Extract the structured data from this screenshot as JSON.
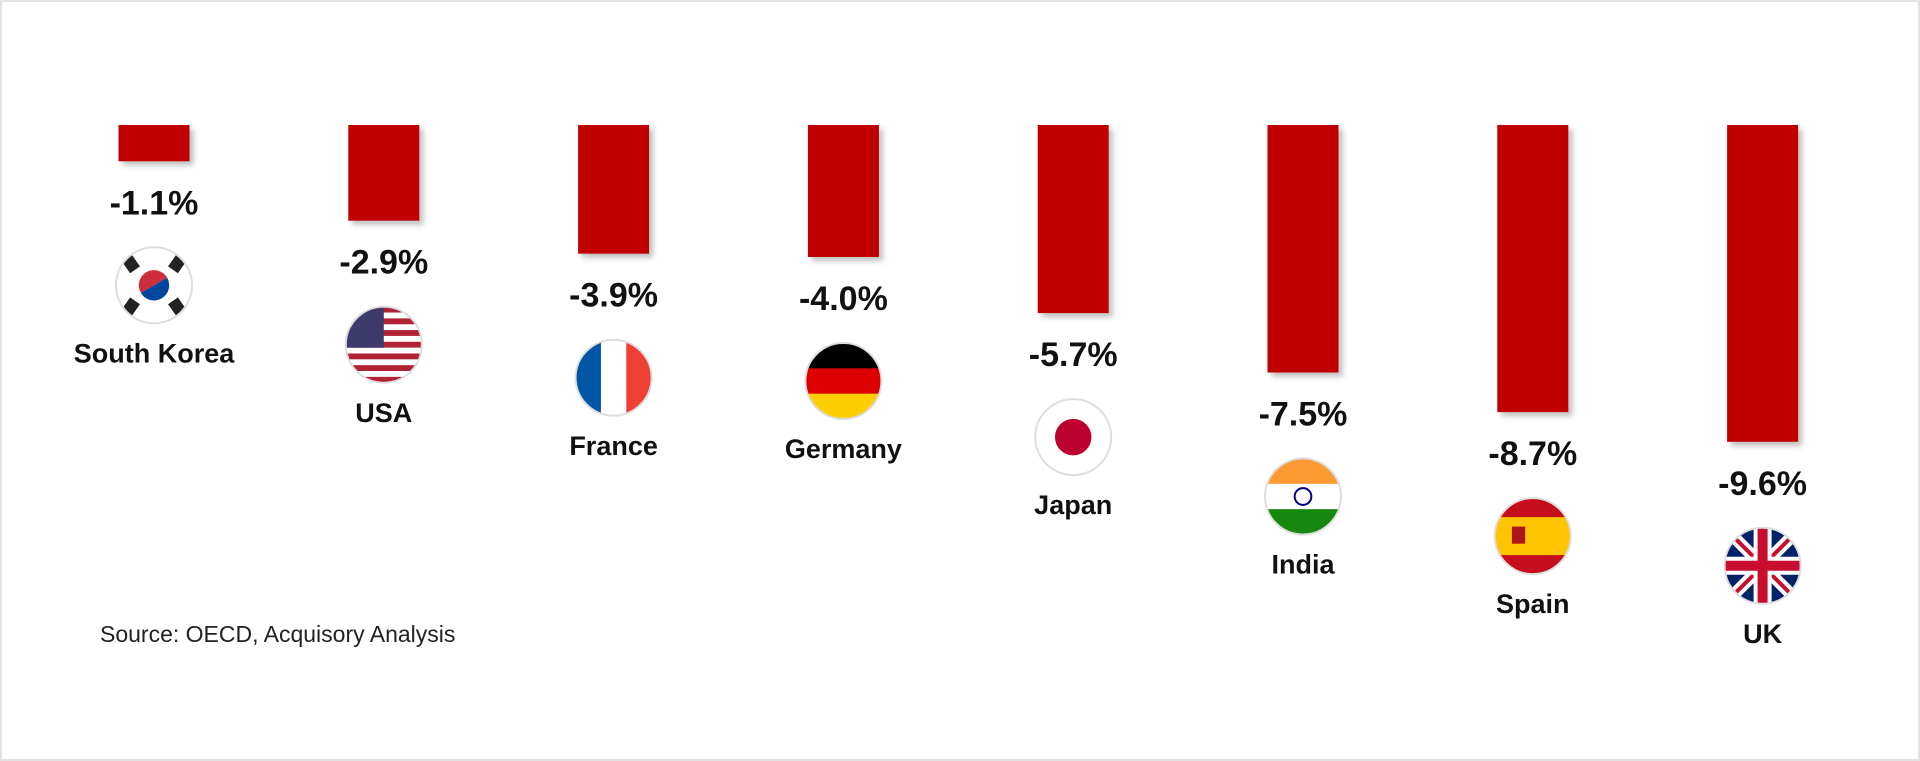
{
  "chart_data": {
    "type": "bar",
    "categories": [
      "South Korea",
      "USA",
      "France",
      "Germany",
      "Japan",
      "India",
      "Spain",
      "UK"
    ],
    "values": [
      -1.1,
      -2.9,
      -3.9,
      -4.0,
      -5.7,
      -7.5,
      -8.7,
      -9.6
    ],
    "value_labels": [
      "-1.1%",
      "-2.9%",
      "-3.9%",
      "-4.0%",
      "-5.7%",
      "-7.5%",
      "-8.7%",
      "-9.6%"
    ],
    "color": "#c00000",
    "source": "Source: OECD, Acquisory Analysis"
  }
}
